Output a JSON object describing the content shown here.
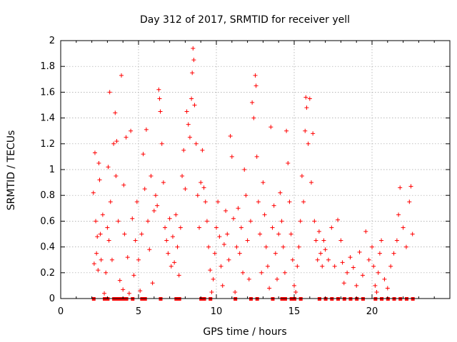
{
  "chart_data": {
    "type": "scatter",
    "title": "Day 312 of 2017, SRMTID for receiver yell",
    "xlabel": "GPS time / hours",
    "ylabel": "SRMTID / TECUs",
    "xlim": [
      0,
      25
    ],
    "ylim": [
      0,
      2
    ],
    "xticks": [
      0,
      5,
      10,
      15,
      20
    ],
    "yticks": [
      0,
      0.2,
      0.4,
      0.6,
      0.8,
      1,
      1.2,
      1.4,
      1.6,
      1.8,
      2
    ],
    "xtick_labels": [
      "0",
      "5",
      "10",
      "15",
      "20"
    ],
    "ytick_labels": [
      "0",
      "0.2",
      "0.4",
      "0.6",
      "0.8",
      "1",
      "1.2",
      "1.4",
      "1.6",
      "1.8",
      "2"
    ],
    "grid": true,
    "marker": "+",
    "color": "#ff0000",
    "series": [
      {
        "name": "SRMTID",
        "points": [
          [
            2.1,
            0.82
          ],
          [
            2.15,
            0.27
          ],
          [
            2.2,
            1.13
          ],
          [
            2.25,
            0.6
          ],
          [
            2.3,
            0.35
          ],
          [
            2.35,
            0.48
          ],
          [
            2.4,
            0.22
          ],
          [
            2.45,
            1.05
          ],
          [
            2.5,
            0.92
          ],
          [
            2.55,
            0.5
          ],
          [
            2.6,
            0.3
          ],
          [
            2.7,
            0.65
          ],
          [
            2.8,
            0.04
          ],
          [
            2.9,
            0.2
          ],
          [
            3.0,
            0.55
          ],
          [
            3.05,
            1.02
          ],
          [
            3.1,
            0.45
          ],
          [
            3.15,
            1.6
          ],
          [
            3.2,
            0.75
          ],
          [
            3.3,
            0.3
          ],
          [
            3.4,
            1.2
          ],
          [
            3.5,
            1.44
          ],
          [
            3.55,
            0.95
          ],
          [
            3.6,
            1.22
          ],
          [
            3.7,
            0.6
          ],
          [
            3.8,
            0.14
          ],
          [
            3.9,
            1.73
          ],
          [
            4.0,
            0.07
          ],
          [
            4.05,
            0.88
          ],
          [
            4.1,
            0.5
          ],
          [
            4.2,
            1.25
          ],
          [
            4.3,
            0.32
          ],
          [
            4.4,
            0.04
          ],
          [
            4.5,
            1.3
          ],
          [
            4.6,
            0.62
          ],
          [
            4.7,
            0.18
          ],
          [
            4.8,
            0.45
          ],
          [
            4.9,
            0.75
          ],
          [
            5.0,
            0.3
          ],
          [
            5.1,
            0.06
          ],
          [
            5.2,
            0.5
          ],
          [
            5.3,
            1.12
          ],
          [
            5.4,
            0.85
          ],
          [
            5.5,
            1.31
          ],
          [
            5.6,
            0.6
          ],
          [
            5.7,
            0.38
          ],
          [
            5.8,
            0.95
          ],
          [
            5.9,
            0.12
          ],
          [
            6.0,
            0.68
          ],
          [
            6.1,
            0.8
          ],
          [
            6.2,
            0.72
          ],
          [
            6.3,
            1.62
          ],
          [
            6.35,
            1.55
          ],
          [
            6.4,
            1.45
          ],
          [
            6.5,
            1.2
          ],
          [
            6.6,
            0.9
          ],
          [
            6.7,
            0.55
          ],
          [
            6.8,
            0.45
          ],
          [
            6.9,
            0.35
          ],
          [
            7.0,
            0.62
          ],
          [
            7.1,
            0.25
          ],
          [
            7.2,
            0.48
          ],
          [
            7.3,
            0.28
          ],
          [
            7.4,
            0.65
          ],
          [
            7.5,
            0.4
          ],
          [
            7.6,
            0.18
          ],
          [
            7.7,
            0.55
          ],
          [
            7.8,
            0.95
          ],
          [
            7.9,
            1.15
          ],
          [
            8.0,
            0.85
          ],
          [
            8.1,
            1.45
          ],
          [
            8.2,
            1.35
          ],
          [
            8.3,
            1.25
          ],
          [
            8.4,
            1.55
          ],
          [
            8.45,
            1.75
          ],
          [
            8.5,
            1.94
          ],
          [
            8.55,
            1.85
          ],
          [
            8.6,
            1.5
          ],
          [
            8.7,
            1.2
          ],
          [
            8.8,
            0.8
          ],
          [
            8.9,
            0.55
          ],
          [
            9.0,
            0.9
          ],
          [
            9.1,
            1.15
          ],
          [
            9.2,
            0.86
          ],
          [
            9.3,
            0.75
          ],
          [
            9.4,
            0.6
          ],
          [
            9.5,
            0.4
          ],
          [
            9.6,
            0.22
          ],
          [
            9.7,
            0.05
          ],
          [
            9.8,
            0.15
          ],
          [
            9.9,
            0.35
          ],
          [
            10.0,
            0.55
          ],
          [
            10.1,
            0.75
          ],
          [
            10.2,
            0.48
          ],
          [
            10.3,
            0.25
          ],
          [
            10.4,
            0.1
          ],
          [
            10.5,
            0.42
          ],
          [
            10.6,
            0.68
          ],
          [
            10.7,
            0.5
          ],
          [
            10.8,
            0.3
          ],
          [
            10.9,
            1.26
          ],
          [
            11.0,
            1.1
          ],
          [
            11.1,
            0.62
          ],
          [
            11.2,
            0.05
          ],
          [
            11.3,
            0.4
          ],
          [
            11.4,
            0.7
          ],
          [
            11.5,
            0.35
          ],
          [
            11.6,
            0.55
          ],
          [
            11.7,
            0.2
          ],
          [
            11.8,
            1.0
          ],
          [
            11.9,
            0.8
          ],
          [
            12.0,
            0.45
          ],
          [
            12.1,
            0.15
          ],
          [
            12.2,
            0.6
          ],
          [
            12.3,
            1.52
          ],
          [
            12.4,
            1.4
          ],
          [
            12.5,
            1.73
          ],
          [
            12.55,
            1.65
          ],
          [
            12.6,
            1.1
          ],
          [
            12.7,
            0.75
          ],
          [
            12.8,
            0.5
          ],
          [
            12.9,
            0.2
          ],
          [
            13.0,
            0.9
          ],
          [
            13.1,
            0.65
          ],
          [
            13.2,
            0.4
          ],
          [
            13.3,
            0.25
          ],
          [
            13.4,
            0.08
          ],
          [
            13.5,
            1.33
          ],
          [
            13.6,
            0.55
          ],
          [
            13.7,
            0.72
          ],
          [
            13.8,
            0.35
          ],
          [
            13.9,
            0.15
          ],
          [
            14.0,
            0.5
          ],
          [
            14.1,
            0.82
          ],
          [
            14.2,
            0.6
          ],
          [
            14.3,
            0.4
          ],
          [
            14.4,
            0.2
          ],
          [
            14.5,
            1.3
          ],
          [
            14.6,
            1.05
          ],
          [
            14.7,
            0.75
          ],
          [
            14.8,
            0.5
          ],
          [
            14.9,
            0.3
          ],
          [
            15.0,
            0.1
          ],
          [
            15.1,
            0.05
          ],
          [
            15.2,
            0.25
          ],
          [
            15.3,
            0.4
          ],
          [
            15.4,
            0.6
          ],
          [
            15.5,
            0.95
          ],
          [
            15.6,
            0.75
          ],
          [
            15.7,
            1.3
          ],
          [
            15.75,
            1.56
          ],
          [
            15.8,
            1.48
          ],
          [
            15.9,
            1.2
          ],
          [
            16.0,
            1.55
          ],
          [
            16.1,
            0.9
          ],
          [
            16.2,
            1.28
          ],
          [
            16.3,
            0.6
          ],
          [
            16.4,
            0.45
          ],
          [
            16.5,
            0.3
          ],
          [
            16.6,
            0.52
          ],
          [
            16.7,
            0.35
          ],
          [
            16.8,
            0.25
          ],
          [
            16.9,
            0.45
          ],
          [
            17.0,
            0.38
          ],
          [
            17.2,
            0.3
          ],
          [
            17.4,
            0.55
          ],
          [
            17.6,
            0.25
          ],
          [
            17.8,
            0.61
          ],
          [
            18.0,
            0.45
          ],
          [
            18.1,
            0.28
          ],
          [
            18.2,
            0.12
          ],
          [
            18.4,
            0.2
          ],
          [
            18.6,
            0.32
          ],
          [
            18.8,
            0.24
          ],
          [
            19.0,
            0.1
          ],
          [
            19.2,
            0.36
          ],
          [
            19.4,
            0.18
          ],
          [
            19.6,
            0.52
          ],
          [
            19.8,
            0.3
          ],
          [
            20.0,
            0.4
          ],
          [
            20.1,
            0.25
          ],
          [
            20.2,
            0.1
          ],
          [
            20.3,
            0.05
          ],
          [
            20.4,
            0.2
          ],
          [
            20.5,
            0.35
          ],
          [
            20.6,
            0.45
          ],
          [
            20.8,
            0.15
          ],
          [
            21.0,
            0.08
          ],
          [
            21.2,
            0.25
          ],
          [
            21.4,
            0.35
          ],
          [
            21.6,
            0.45
          ],
          [
            21.7,
            0.65
          ],
          [
            21.8,
            0.86
          ],
          [
            22.0,
            0.55
          ],
          [
            22.2,
            0.4
          ],
          [
            22.4,
            0.75
          ],
          [
            22.5,
            0.87
          ],
          [
            22.6,
            0.5
          ]
        ]
      }
    ],
    "zero_marker_x": [
      2.1,
      2.8,
      3.0,
      3.4,
      3.6,
      3.8,
      4.0,
      4.2,
      4.6,
      5.2,
      5.4,
      6.4,
      7.4,
      7.6,
      9.0,
      9.2,
      9.6,
      11.2,
      12.2,
      12.6,
      13.6,
      14.2,
      14.4,
      14.8,
      15.0,
      15.4,
      16.6,
      17.0,
      17.4,
      17.8,
      18.2,
      18.6,
      19.0,
      19.4,
      20.2,
      20.6,
      21.0,
      21.4,
      21.8,
      22.2,
      22.6
    ]
  }
}
